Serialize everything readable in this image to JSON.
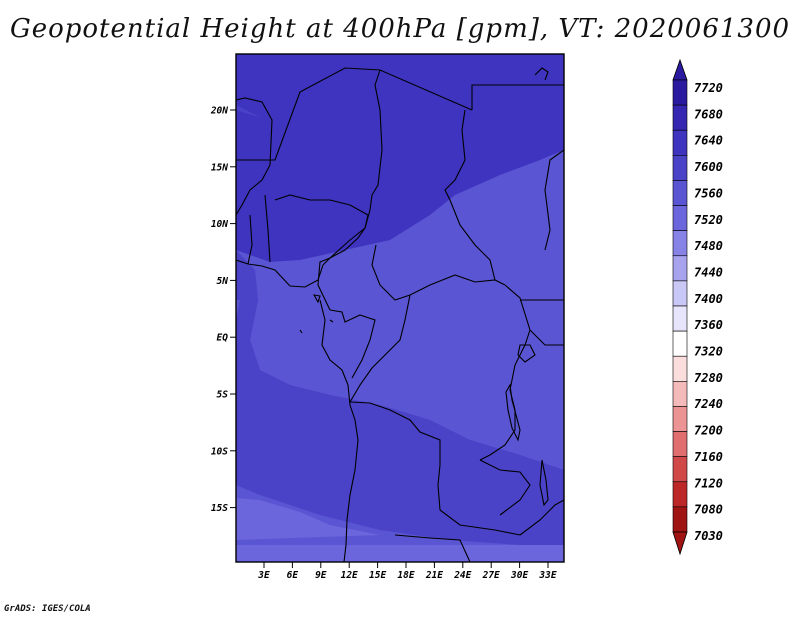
{
  "title": "Geopotential Height at 400hPa [gpm], VT: 2020061300",
  "credit": "GrADS: IGES/COLA",
  "lat_labels": [
    "20N",
    "15N",
    "10N",
    "5N",
    "EQ",
    "5S",
    "10S",
    "15S"
  ],
  "lon_labels": [
    "3E",
    "6E",
    "9E",
    "12E",
    "15E",
    "18E",
    "21E",
    "24E",
    "27E",
    "30E",
    "33E"
  ],
  "colorbar": {
    "levels": [
      "7720",
      "7680",
      "7640",
      "7600",
      "7560",
      "7520",
      "7480",
      "7440",
      "7400",
      "7360",
      "7320",
      "7280",
      "7240",
      "7200",
      "7160",
      "7120",
      "7080",
      "7030"
    ],
    "colors": [
      "#2a1aa0",
      "#3426b0",
      "#3f34c0",
      "#4a43c8",
      "#5a55d2",
      "#6b66dc",
      "#8782e6",
      "#a7a3ee",
      "#c9c7f5",
      "#e6e5fb",
      "#ffffff",
      "#fadede",
      "#f4baba",
      "#ec9494",
      "#e06e6e",
      "#d04848",
      "#bc2828",
      "#a01414"
    ]
  },
  "field_colors": {
    "c7640": "#3f34c0",
    "c7600": "#4a43c8",
    "c7560": "#5a55d2",
    "c7520": "#6b66dc"
  }
}
